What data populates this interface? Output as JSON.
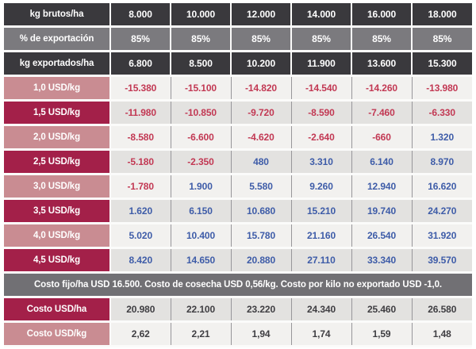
{
  "chart_data": {
    "type": "table",
    "column_count": 7,
    "header_rows": [
      {
        "label": "kg brutos/ha",
        "values": [
          "8.000",
          "10.000",
          "12.000",
          "14.000",
          "16.000",
          "18.000"
        ]
      },
      {
        "label": "% de exportación",
        "values": [
          "85%",
          "85%",
          "85%",
          "85%",
          "85%",
          "85%"
        ]
      },
      {
        "label": "kg exportados/ha",
        "values": [
          "6.800",
          "8.500",
          "10.200",
          "11.900",
          "13.600",
          "15.300"
        ]
      }
    ],
    "price_rows": [
      {
        "label": "1,0 USD/kg",
        "values": [
          "-15.380",
          "-15.100",
          "-14.820",
          "-14.540",
          "-14.260",
          "-13.980"
        ]
      },
      {
        "label": "1,5 USD/kg",
        "values": [
          "-11.980",
          "-10.850",
          "-9.720",
          "-8.590",
          "-7.460",
          "-6.330"
        ]
      },
      {
        "label": "2,0 USD/kg",
        "values": [
          "-8.580",
          "-6.600",
          "-4.620",
          "-2.640",
          "-660",
          "1.320"
        ]
      },
      {
        "label": "2,5 USD/kg",
        "values": [
          "-5.180",
          "-2.350",
          "480",
          "3.310",
          "6.140",
          "8.970"
        ]
      },
      {
        "label": "3,0 USD/kg",
        "values": [
          "-1.780",
          "1.900",
          "5.580",
          "9.260",
          "12.940",
          "16.620"
        ]
      },
      {
        "label": "3,5 USD/kg",
        "values": [
          "1.620",
          "6.150",
          "10.680",
          "15.210",
          "19.740",
          "24.270"
        ]
      },
      {
        "label": "4,0 USD/kg",
        "values": [
          "5.020",
          "10.400",
          "15.780",
          "21.160",
          "26.540",
          "31.920"
        ]
      },
      {
        "label": "4,5 USD/kg",
        "values": [
          "8.420",
          "14.650",
          "20.880",
          "27.110",
          "33.340",
          "39.570"
        ]
      }
    ],
    "note": "Costo fijo/ha USD 16.500. Costo de cosecha USD 0,56/kg. Costo por kilo no exportado USD -1,0.",
    "cost_rows": [
      {
        "label": "Costo USD/ha",
        "values": [
          "20.980",
          "22.100",
          "23.220",
          "24.340",
          "25.460",
          "26.580"
        ]
      },
      {
        "label": "Costo USD/kg",
        "values": [
          "2,62",
          "2,21",
          "1,94",
          "1,74",
          "1,59",
          "1,48"
        ]
      }
    ]
  },
  "colors": {
    "header_dark": "#3a393d",
    "header_gray": "#7b7a7e",
    "note_bg": "#717074",
    "label_dark": "#a32049",
    "label_light": "#c98c92",
    "cell_bg_light": "#f2f1ef",
    "cell_bg_dark": "#e3e2e0",
    "negative_text": "#c23853",
    "positive_text": "#3e5ca8",
    "cost_text": "#3f3e42",
    "grid_line": "#97969a",
    "row_separator": "#fbfbfa",
    "table_bottom_border": "#b3b2b1",
    "header_text": "#ffffff"
  }
}
